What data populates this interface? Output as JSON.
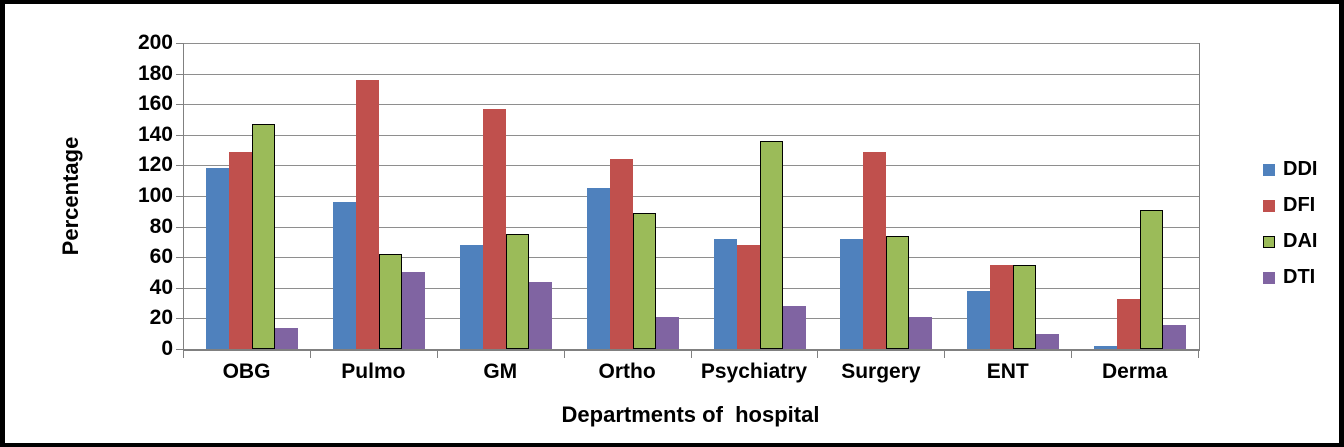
{
  "chart_data": {
    "type": "bar",
    "title": "",
    "xlabel": "Departments of  hospital",
    "ylabel": "Percentage",
    "categories": [
      "OBG",
      "Pulmo",
      "GM",
      "Ortho",
      "Psychiatry",
      "Surgery",
      "ENT",
      "Derma"
    ],
    "series": [
      {
        "name": "DDI",
        "color": "#4F81BD",
        "border": null,
        "values": [
          118,
          96,
          68,
          105,
          72,
          72,
          38,
          2
        ]
      },
      {
        "name": "DFI",
        "color": "#C0504D",
        "border": null,
        "values": [
          129,
          176,
          157,
          124,
          68,
          129,
          55,
          33
        ]
      },
      {
        "name": "DAI",
        "color": "#9BBB59",
        "border": "#000000",
        "values": [
          147,
          62,
          75,
          89,
          136,
          74,
          55,
          91
        ]
      },
      {
        "name": "DTI",
        "color": "#8064A2",
        "border": null,
        "values": [
          14,
          50,
          44,
          21,
          28,
          21,
          10,
          16
        ]
      }
    ],
    "ylim": [
      0,
      200
    ],
    "ytick_step": 20,
    "ytick_labels": [
      "0",
      "20",
      "40",
      "60",
      "80",
      "100",
      "120",
      "140",
      "160",
      "180",
      "200"
    ],
    "grid": true,
    "legend_position": "right",
    "legend_entries": [
      "DDI",
      "DFI",
      "DAI",
      "DTI"
    ]
  },
  "style": {
    "background": "#FFFFFF",
    "frame_border": "#000000",
    "grid_color": "#8E8E8E",
    "axis_color": "#808080",
    "text_color": "#000000"
  }
}
